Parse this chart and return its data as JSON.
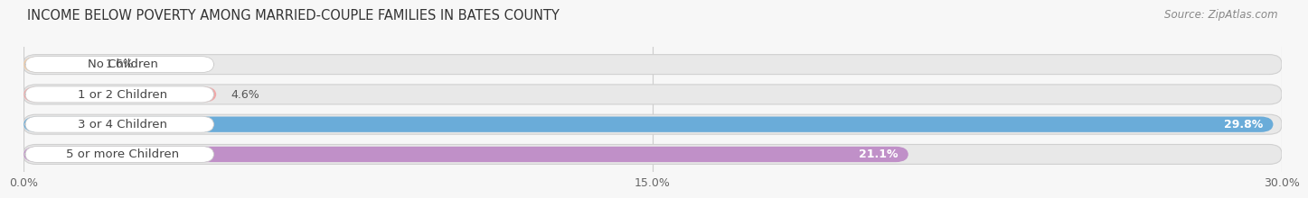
{
  "title": "INCOME BELOW POVERTY AMONG MARRIED-COUPLE FAMILIES IN BATES COUNTY",
  "source": "Source: ZipAtlas.com",
  "categories": [
    "No Children",
    "1 or 2 Children",
    "3 or 4 Children",
    "5 or more Children"
  ],
  "values": [
    1.6,
    4.6,
    29.8,
    21.1
  ],
  "bar_colors": [
    "#f5c99e",
    "#f0a8a8",
    "#6aacd9",
    "#c090c8"
  ],
  "track_color": "#e8e8e8",
  "track_edge_color": "#d0d0d0",
  "xlim_min": 0.0,
  "xlim_max": 30.0,
  "xticks": [
    0.0,
    15.0,
    30.0
  ],
  "xtick_labels": [
    "0.0%",
    "15.0%",
    "30.0%"
  ],
  "background_color": "#f7f7f7",
  "title_fontsize": 10.5,
  "label_fontsize": 9.5,
  "value_fontsize": 9,
  "source_fontsize": 8.5,
  "title_color": "#333333",
  "label_color": "#444444",
  "source_color": "#888888",
  "grid_color": "#cccccc",
  "value_threshold": 20
}
